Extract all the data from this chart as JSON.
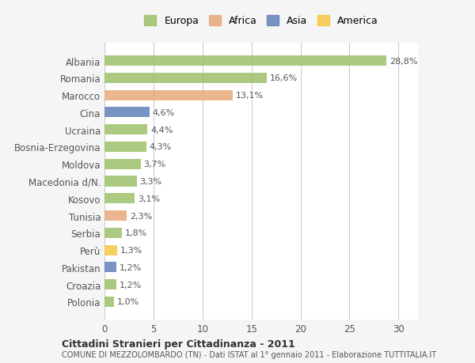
{
  "categories": [
    "Albania",
    "Romania",
    "Marocco",
    "Cina",
    "Ucraina",
    "Bosnia-Erzegovina",
    "Moldova",
    "Macedonia d/N.",
    "Kosovo",
    "Tunisia",
    "Serbia",
    "Perù",
    "Pakistan",
    "Croazia",
    "Polonia"
  ],
  "values": [
    28.8,
    16.6,
    13.1,
    4.6,
    4.4,
    4.3,
    3.7,
    3.3,
    3.1,
    2.3,
    1.8,
    1.3,
    1.2,
    1.2,
    1.0
  ],
  "labels": [
    "28,8%",
    "16,6%",
    "13,1%",
    "4,6%",
    "4,4%",
    "4,3%",
    "3,7%",
    "3,3%",
    "3,1%",
    "2,3%",
    "1,8%",
    "1,3%",
    "1,2%",
    "1,2%",
    "1,0%"
  ],
  "continents": [
    "Europa",
    "Europa",
    "Africa",
    "Asia",
    "Europa",
    "Europa",
    "Europa",
    "Europa",
    "Europa",
    "Africa",
    "Europa",
    "America",
    "Asia",
    "Europa",
    "Europa"
  ],
  "colors": {
    "Europa": "#9dc06a",
    "Africa": "#e8a87c",
    "Asia": "#6282b8",
    "America": "#f5c842"
  },
  "legend_order": [
    "Europa",
    "Africa",
    "Asia",
    "America"
  ],
  "xlim": [
    0,
    32
  ],
  "xticks": [
    0,
    5,
    10,
    15,
    20,
    25,
    30
  ],
  "title": "Cittadini Stranieri per Cittadinanza - 2011",
  "subtitle": "COMUNE DI MEZZOLOMBARDO (TN) - Dati ISTAT al 1° gennaio 2011 - Elaborazione TUTTITALIA.IT",
  "background_color": "#f5f5f5",
  "bar_bg_color": "#ffffff",
  "grid_color": "#cccccc"
}
